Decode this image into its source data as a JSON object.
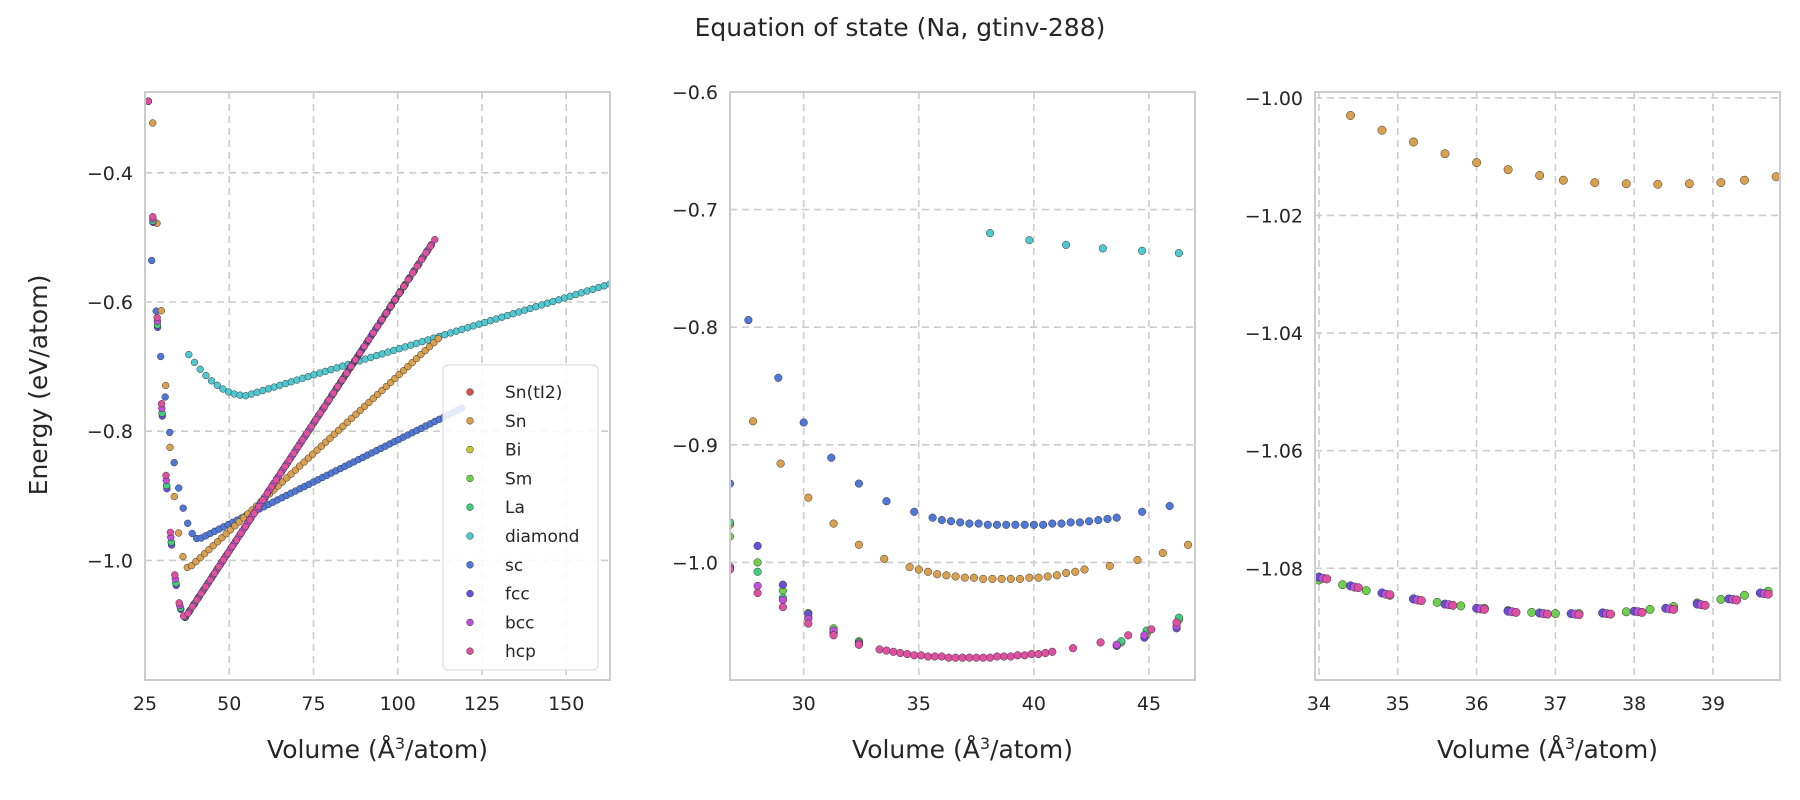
{
  "title": "Equation of state (Na, gtinv-288)",
  "ylabel": "Energy (eV/atom)",
  "colors": {
    "Sn(tI2)": "#d0504f",
    "Sn": "#d9a04e",
    "Bi": "#c8c738",
    "Sm": "#6fcf4f",
    "La": "#3fcf7f",
    "diamond": "#50c8cf",
    "sc": "#4f78d9",
    "fcc": "#6a50d9",
    "bcc": "#c050dc",
    "hcp": "#df50a0"
  },
  "chart_data": [
    {
      "type": "scatter",
      "title": "",
      "xlabel_prefix": "Volume (",
      "xlabel_unit": "Å",
      "xlabel_exp": "3",
      "xlabel_suffix": "/atom)",
      "xlim": [
        25,
        163
      ],
      "ylim": [
        -1.185,
        -0.275
      ],
      "xticks": [
        25,
        50,
        75,
        100,
        125,
        150
      ],
      "yticks": [
        -1.0,
        -0.8,
        -0.6,
        -0.4
      ],
      "xtick_labels": [
        "25",
        "50",
        "75",
        "100",
        "125",
        "150"
      ],
      "ytick_labels": [
        "−1.0",
        "−0.8",
        "−0.6",
        "−0.4"
      ],
      "grid": true,
      "legend": {
        "placement": "lower-right",
        "entries": [
          "Sn(tI2)",
          "Sn",
          "Bi",
          "Sm",
          "La",
          "diamond",
          "sc",
          "fcc",
          "bcc",
          "hcp"
        ]
      },
      "series": [
        {
          "name": "diamond",
          "type": "curve",
          "x_range": [
            38,
            163
          ],
          "n": 75,
          "vmin": 55,
          "emin": -0.745,
          "a": 0.00022,
          "b": 0.0016
        },
        {
          "name": "sc",
          "type": "curve",
          "x_range": [
            27,
            119
          ],
          "n": 70,
          "vmin": 41,
          "emin": -0.967,
          "a": 0.0022,
          "b": 0.0026
        },
        {
          "name": "Sn",
          "type": "curve",
          "x_range": [
            26,
            112
          ],
          "n": 68,
          "vmin": 38,
          "emin": -1.012,
          "a": 0.006,
          "b": 0.0048
        },
        {
          "name": "fcc",
          "type": "curve",
          "x_range": [
            26,
            110
          ],
          "n": 62,
          "vmin": 37,
          "emin": -1.088,
          "a": 0.0066,
          "b": 0.0079
        },
        {
          "name": "Sm",
          "type": "curve",
          "x_range": [
            26,
            109
          ],
          "n": 62,
          "vmin": 37,
          "emin": -1.088,
          "a": 0.0066,
          "b": 0.0079
        },
        {
          "name": "La",
          "type": "curve",
          "x_range": [
            26,
            109
          ],
          "n": 62,
          "vmin": 37,
          "emin": -1.088,
          "a": 0.0066,
          "b": 0.0079
        },
        {
          "name": "bcc",
          "type": "curve",
          "x_range": [
            26,
            110
          ],
          "n": 64,
          "vmin": 37,
          "emin": -1.088,
          "a": 0.0066,
          "b": 0.0079
        },
        {
          "name": "hcp",
          "type": "curve",
          "x_range": [
            26,
            111
          ],
          "n": 66,
          "vmin": 37,
          "emin": -1.088,
          "a": 0.0066,
          "b": 0.0079
        }
      ]
    },
    {
      "type": "scatter",
      "title": "",
      "xlabel_prefix": "Volume (",
      "xlabel_unit": "Å",
      "xlabel_exp": "3",
      "xlabel_suffix": "/atom)",
      "xlim": [
        26.8,
        47.0
      ],
      "ylim": [
        -1.1,
        -0.6
      ],
      "xticks": [
        30,
        35,
        40,
        45
      ],
      "yticks": [
        -1.0,
        -0.9,
        -0.8,
        -0.7,
        -0.6
      ],
      "xtick_labels": [
        "30",
        "35",
        "40",
        "45"
      ],
      "ytick_labels": [
        "−1.0",
        "−0.9",
        "−0.8",
        "−0.7",
        "−0.6"
      ],
      "grid": true,
      "series": [
        {
          "name": "diamond",
          "type": "points",
          "x": [
            38.1,
            39.8,
            41.4,
            43.0,
            44.7,
            46.3
          ],
          "y": [
            -0.72,
            -0.726,
            -0.73,
            -0.733,
            -0.735,
            -0.737
          ]
        },
        {
          "name": "sc",
          "type": "points",
          "x": [
            26.8,
            27.6,
            28.9,
            30.0,
            31.2,
            32.4,
            33.6,
            34.8,
            35.6,
            36.0,
            36.4,
            36.8,
            37.2,
            37.6,
            38.0,
            38.4,
            38.8,
            39.2,
            39.6,
            40.0,
            40.4,
            40.8,
            41.2,
            41.6,
            42.0,
            42.4,
            42.8,
            43.2,
            43.6,
            44.7,
            45.9
          ],
          "y": [
            -0.933,
            -0.794,
            -0.843,
            -0.881,
            -0.911,
            -0.933,
            -0.948,
            -0.957,
            -0.962,
            -0.964,
            -0.965,
            -0.966,
            -0.967,
            -0.967,
            -0.968,
            -0.968,
            -0.968,
            -0.968,
            -0.968,
            -0.968,
            -0.968,
            -0.967,
            -0.967,
            -0.966,
            -0.966,
            -0.965,
            -0.964,
            -0.963,
            -0.962,
            -0.957,
            -0.952
          ]
        },
        {
          "name": "Sn",
          "type": "points",
          "x": [
            26.8,
            27.8,
            29.0,
            30.2,
            31.3,
            32.4,
            33.5,
            34.6,
            35.0,
            35.4,
            35.8,
            36.2,
            36.6,
            37.0,
            37.4,
            37.8,
            38.2,
            38.6,
            39.0,
            39.4,
            39.8,
            40.2,
            40.6,
            41.0,
            41.4,
            41.8,
            42.2,
            43.3,
            44.5,
            45.6,
            46.7
          ],
          "y": [
            -0.968,
            -0.88,
            -0.916,
            -0.945,
            -0.967,
            -0.985,
            -0.997,
            -1.004,
            -1.006,
            -1.008,
            -1.01,
            -1.011,
            -1.012,
            -1.013,
            -1.013,
            -1.014,
            -1.014,
            -1.014,
            -1.014,
            -1.014,
            -1.013,
            -1.013,
            -1.012,
            -1.011,
            -1.009,
            -1.008,
            -1.006,
            -1.003,
            -0.998,
            -0.992,
            -0.985
          ]
        },
        {
          "name": "Sm",
          "type": "points",
          "x": [
            26.8,
            28.0,
            29.1,
            30.2,
            31.3,
            32.4,
            43.8,
            44.9,
            46.3
          ],
          "y": [
            -0.978,
            -1.0,
            -1.024,
            -1.043,
            -1.056,
            -1.067,
            -1.068,
            -1.061,
            -1.049
          ]
        },
        {
          "name": "La",
          "type": "points",
          "x": [
            26.8,
            28.0,
            29.1,
            30.2,
            31.3,
            32.4,
            43.8,
            44.9,
            46.3
          ],
          "y": [
            -0.966,
            -1.008,
            -1.03,
            -1.047,
            -1.059,
            -1.068,
            -1.067,
            -1.058,
            -1.047
          ]
        },
        {
          "name": "fcc",
          "type": "points",
          "x": [
            26.8,
            28.0,
            29.1,
            30.2,
            31.3,
            32.4,
            43.6,
            44.8,
            46.2
          ],
          "y": [
            -1.004,
            -0.986,
            -1.019,
            -1.044,
            -1.06,
            -1.07,
            -1.071,
            -1.064,
            -1.056
          ]
        },
        {
          "name": "bcc",
          "type": "points",
          "x": [
            26.8,
            28.0,
            29.1,
            30.2,
            31.3,
            32.4,
            43.6,
            44.8,
            46.2
          ],
          "y": [
            -1.004,
            -1.02,
            -1.032,
            -1.048,
            -1.058,
            -1.069,
            -1.07,
            -1.062,
            -1.054
          ]
        },
        {
          "name": "hcp",
          "type": "points",
          "x": [
            26.8,
            28.0,
            29.1,
            30.2,
            31.3,
            32.4,
            33.3,
            33.6,
            33.9,
            34.2,
            34.5,
            34.8,
            35.1,
            35.4,
            35.7,
            36.0,
            36.3,
            36.6,
            36.9,
            37.2,
            37.5,
            37.8,
            38.1,
            38.4,
            38.7,
            39.0,
            39.3,
            39.6,
            39.9,
            40.2,
            40.5,
            40.8,
            41.7,
            42.9,
            44.1,
            45.1,
            46.2
          ],
          "y": [
            -1.006,
            -1.026,
            -1.038,
            -1.052,
            -1.062,
            -1.07,
            -1.074,
            -1.075,
            -1.076,
            -1.077,
            -1.078,
            -1.079,
            -1.079,
            -1.08,
            -1.08,
            -1.08,
            -1.081,
            -1.081,
            -1.081,
            -1.081,
            -1.081,
            -1.081,
            -1.081,
            -1.08,
            -1.08,
            -1.08,
            -1.079,
            -1.079,
            -1.078,
            -1.078,
            -1.077,
            -1.076,
            -1.073,
            -1.068,
            -1.062,
            -1.057,
            -1.051
          ]
        }
      ]
    },
    {
      "type": "scatter",
      "title": "",
      "xlabel_prefix": "Volume (",
      "xlabel_unit": "Å",
      "xlabel_exp": "3",
      "xlabel_suffix": "/atom)",
      "xlim": [
        33.95,
        39.85
      ],
      "ylim": [
        -1.099,
        -0.999
      ],
      "xticks": [
        34,
        35,
        36,
        37,
        38,
        39
      ],
      "yticks": [
        -1.08,
        -1.06,
        -1.04,
        -1.02,
        -1.0
      ],
      "xtick_labels": [
        "34",
        "35",
        "36",
        "37",
        "38",
        "39"
      ],
      "ytick_labels": [
        "−1.08",
        "−1.06",
        "−1.04",
        "−1.02",
        "−1.00"
      ],
      "grid": true,
      "series": [
        {
          "name": "Sn",
          "type": "points",
          "x": [
            34.4,
            34.8,
            35.2,
            35.6,
            36.0,
            36.4,
            36.8,
            37.1,
            37.5,
            37.9,
            38.3,
            38.7,
            39.1,
            39.4,
            39.8
          ],
          "y": [
            -1.003,
            -1.0055,
            -1.0075,
            -1.0095,
            -1.011,
            -1.0122,
            -1.0132,
            -1.014,
            -1.0144,
            -1.0146,
            -1.0147,
            -1.0146,
            -1.0144,
            -1.014,
            -1.0134
          ]
        },
        {
          "name": "Sm",
          "type": "points",
          "x": [
            34.0,
            34.3,
            34.6,
            34.9,
            35.2,
            35.5,
            35.8,
            36.1,
            36.4,
            36.7,
            37.0,
            37.3,
            37.6,
            37.9,
            38.2,
            38.5,
            38.8,
            39.1,
            39.4,
            39.7
          ],
          "y": [
            -1.082,
            -1.0828,
            -1.0838,
            -1.0846,
            -1.0852,
            -1.0858,
            -1.0864,
            -1.0868,
            -1.0872,
            -1.0875,
            -1.0877,
            -1.0877,
            -1.0876,
            -1.0874,
            -1.087,
            -1.0865,
            -1.0859,
            -1.0853,
            -1.0846,
            -1.0839
          ]
        },
        {
          "name": "fcc",
          "type": "points",
          "x": [
            34.0,
            34.4,
            34.8,
            35.2,
            35.6,
            36.0,
            36.4,
            36.8,
            37.2,
            37.6,
            38.0,
            38.4,
            38.8,
            39.2,
            39.6
          ],
          "y": [
            -1.0815,
            -1.083,
            -1.0842,
            -1.0852,
            -1.0861,
            -1.0868,
            -1.0873,
            -1.0876,
            -1.0877,
            -1.0876,
            -1.0873,
            -1.0868,
            -1.0861,
            -1.0852,
            -1.0842
          ]
        },
        {
          "name": "bcc",
          "type": "points",
          "x": [
            34.05,
            34.45,
            34.85,
            35.25,
            35.65,
            36.05,
            36.45,
            36.85,
            37.25,
            37.65,
            38.05,
            38.45,
            38.85,
            39.25,
            39.65
          ],
          "y": [
            -1.0817,
            -1.0832,
            -1.0844,
            -1.0854,
            -1.0862,
            -1.0869,
            -1.0874,
            -1.0877,
            -1.0878,
            -1.0877,
            -1.0874,
            -1.0869,
            -1.0862,
            -1.0853,
            -1.0843
          ]
        },
        {
          "name": "hcp",
          "type": "points",
          "x": [
            34.1,
            34.5,
            34.9,
            35.3,
            35.7,
            36.1,
            36.5,
            36.9,
            37.3,
            37.7,
            38.1,
            38.5,
            38.9,
            39.3,
            39.7
          ],
          "y": [
            -1.0818,
            -1.0833,
            -1.0845,
            -1.0855,
            -1.0863,
            -1.087,
            -1.0875,
            -1.0878,
            -1.0879,
            -1.0878,
            -1.0875,
            -1.087,
            -1.0863,
            -1.0854,
            -1.0844
          ]
        }
      ]
    }
  ]
}
